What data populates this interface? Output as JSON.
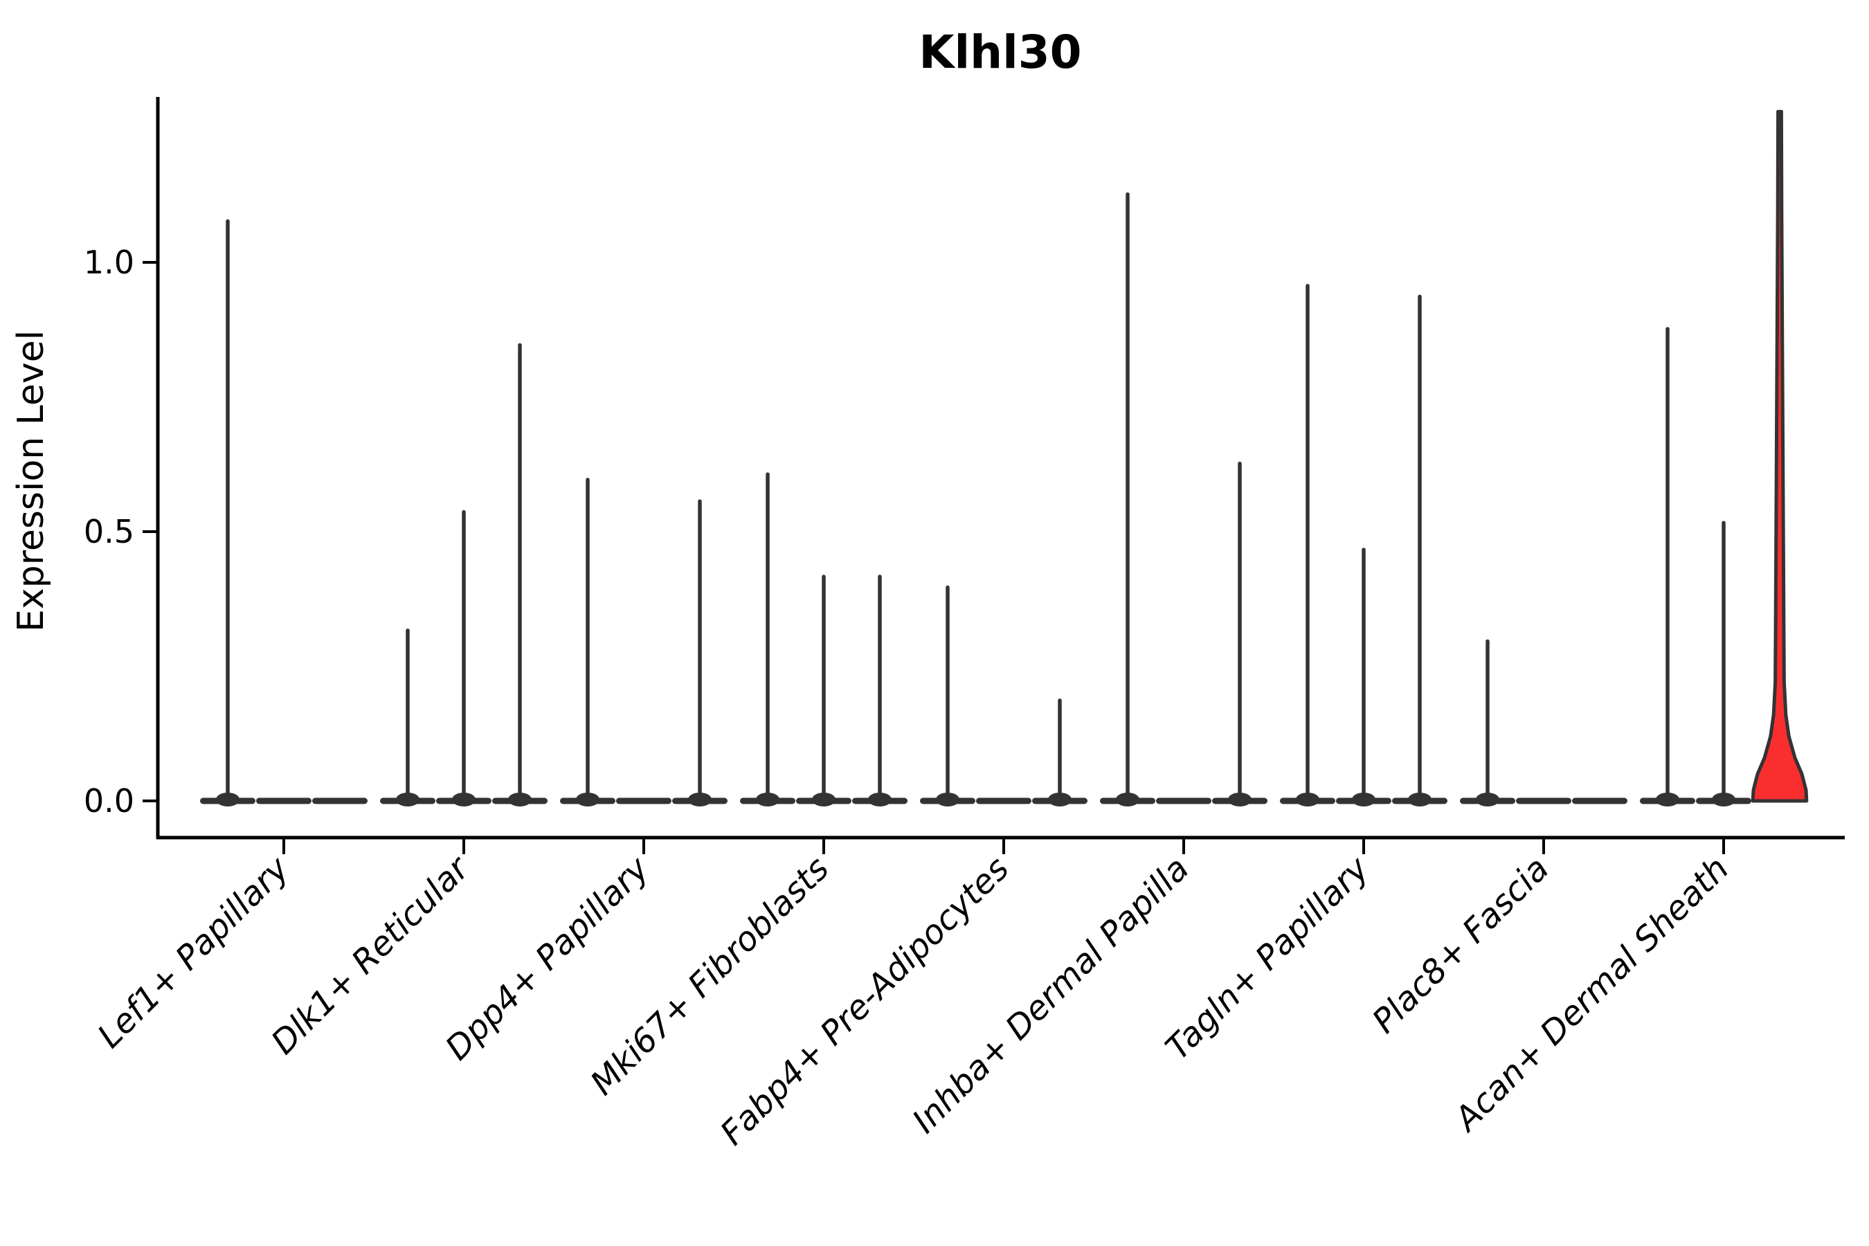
{
  "chart_data": {
    "type": "violin",
    "title": "Klhl30",
    "xlabel": "",
    "ylabel": "Expression Level",
    "yticks": [
      "0.0",
      "0.5",
      "1.0"
    ],
    "ytick_values": [
      0.0,
      0.5,
      1.0
    ],
    "ylim": [
      -0.068,
      1.3
    ],
    "legend": "none",
    "grid": false,
    "violins_per_category": 3,
    "categories": [
      "Lef1+ Papillary",
      "Dlk1+ Reticular",
      "Dpp4+ Papillary",
      "Mki67+ Fibroblasts",
      "Fabp4+ Pre-Adipocytes",
      "Inhba+ Dermal Papilla",
      "Tagln+ Papillary",
      "Plac8+ Fascia",
      "Acan+ Dermal Sheath"
    ],
    "groups": [
      {
        "label": "Lef1+ Papillary",
        "violins": [
          {
            "max": 1.08,
            "highlighted": false
          },
          {
            "max": 0,
            "highlighted": false
          },
          {
            "max": 0,
            "highlighted": false
          }
        ]
      },
      {
        "label": "Dlk1+ Reticular",
        "violins": [
          {
            "max": 0.32,
            "highlighted": false
          },
          {
            "max": 0.54,
            "highlighted": false
          },
          {
            "max": 0.85,
            "highlighted": false
          }
        ]
      },
      {
        "label": "Dpp4+ Papillary",
        "violins": [
          {
            "max": 0.6,
            "highlighted": false
          },
          {
            "max": 0,
            "highlighted": false
          },
          {
            "max": 0.56,
            "highlighted": false
          }
        ]
      },
      {
        "label": "Mki67+ Fibroblasts",
        "violins": [
          {
            "max": 0.61,
            "highlighted": false
          },
          {
            "max": 0.42,
            "highlighted": false
          },
          {
            "max": 0.42,
            "highlighted": false
          }
        ]
      },
      {
        "label": "Fabp4+ Pre-Adipocytes",
        "violins": [
          {
            "max": 0.4,
            "highlighted": false
          },
          {
            "max": 0,
            "highlighted": false
          },
          {
            "max": 0.19,
            "highlighted": false
          }
        ]
      },
      {
        "label": "Inhba+ Dermal Papilla",
        "violins": [
          {
            "max": 1.13,
            "highlighted": false
          },
          {
            "max": 0,
            "highlighted": false
          },
          {
            "max": 0.63,
            "highlighted": false
          }
        ]
      },
      {
        "label": "Tagln+ Papillary",
        "violins": [
          {
            "max": 0.96,
            "highlighted": false
          },
          {
            "max": 0.47,
            "highlighted": false
          },
          {
            "max": 0.94,
            "highlighted": false
          }
        ]
      },
      {
        "label": "Plac8+ Fascia",
        "violins": [
          {
            "max": 0.3,
            "highlighted": false
          },
          {
            "max": 0,
            "highlighted": false
          },
          {
            "max": 0,
            "highlighted": false
          }
        ]
      },
      {
        "label": "Acan+ Dermal Sheath",
        "violins": [
          {
            "max": 0.88,
            "highlighted": false
          },
          {
            "max": 0.52,
            "highlighted": false
          },
          {
            "max": 1.28,
            "highlighted": true
          }
        ]
      }
    ],
    "highlighted_violin": {
      "category": "Acan+ Dermal Sheath",
      "slot": 3,
      "max": 1.28,
      "profile": [
        [
          0.0,
          0.97
        ],
        [
          0.02,
          0.95
        ],
        [
          0.05,
          0.8
        ],
        [
          0.08,
          0.55
        ],
        [
          0.12,
          0.33
        ],
        [
          0.16,
          0.22
        ],
        [
          0.22,
          0.16
        ],
        [
          0.3,
          0.15
        ],
        [
          0.4,
          0.14
        ],
        [
          0.5,
          0.13
        ],
        [
          0.6,
          0.12
        ],
        [
          0.7,
          0.11
        ],
        [
          0.8,
          0.1
        ],
        [
          0.9,
          0.09
        ],
        [
          1.0,
          0.08
        ],
        [
          1.1,
          0.07
        ],
        [
          1.2,
          0.065
        ],
        [
          1.28,
          0.06
        ]
      ]
    },
    "colors": {
      "highlight_fill": "#fa2e2e",
      "violin_outline": "#333333",
      "spike": "#333333",
      "axis": "#000000",
      "text": "#000000",
      "background": "#ffffff"
    }
  }
}
